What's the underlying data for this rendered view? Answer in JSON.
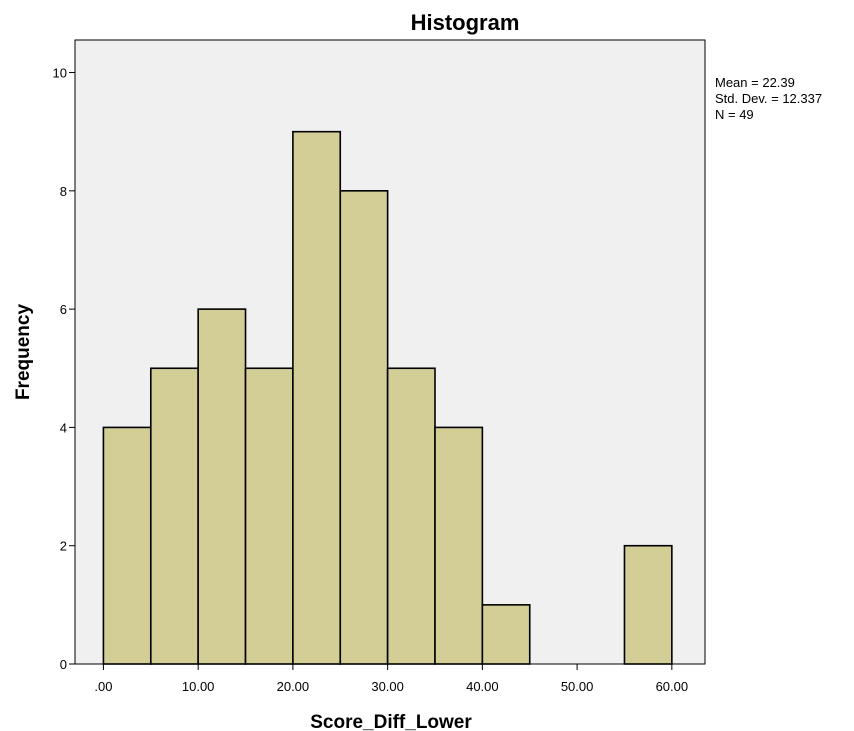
{
  "chart_data": {
    "type": "bar",
    "title": "Histogram",
    "xlabel": "Score_Diff_Lower",
    "ylabel": "Frequency",
    "bin_width": 5,
    "bin_starts": [
      0,
      5,
      10,
      15,
      20,
      25,
      30,
      35,
      40,
      45,
      50,
      55
    ],
    "values": [
      4,
      5,
      6,
      5,
      9,
      8,
      5,
      4,
      1,
      0,
      0,
      2
    ],
    "xlim": [
      -3.0,
      63.5
    ],
    "ylim": [
      0,
      10.55
    ],
    "x_ticks": [
      0,
      10,
      20,
      30,
      40,
      50,
      60
    ],
    "x_tick_labels": [
      ".00",
      "10.00",
      "20.00",
      "30.00",
      "40.00",
      "50.00",
      "60.00"
    ],
    "y_ticks": [
      0,
      2,
      4,
      6,
      8,
      10
    ],
    "y_tick_labels": [
      "0",
      "2",
      "4",
      "6",
      "8",
      "10"
    ],
    "grid": false,
    "stats": [
      "Mean = 22.39",
      "Std. Dev. = 12.337",
      "N = 49"
    ],
    "legend_position": "right",
    "colors": {
      "bar_fill": "#d3cd96",
      "bar_stroke": "#000000",
      "plot_background": "#f0f0f0"
    }
  }
}
